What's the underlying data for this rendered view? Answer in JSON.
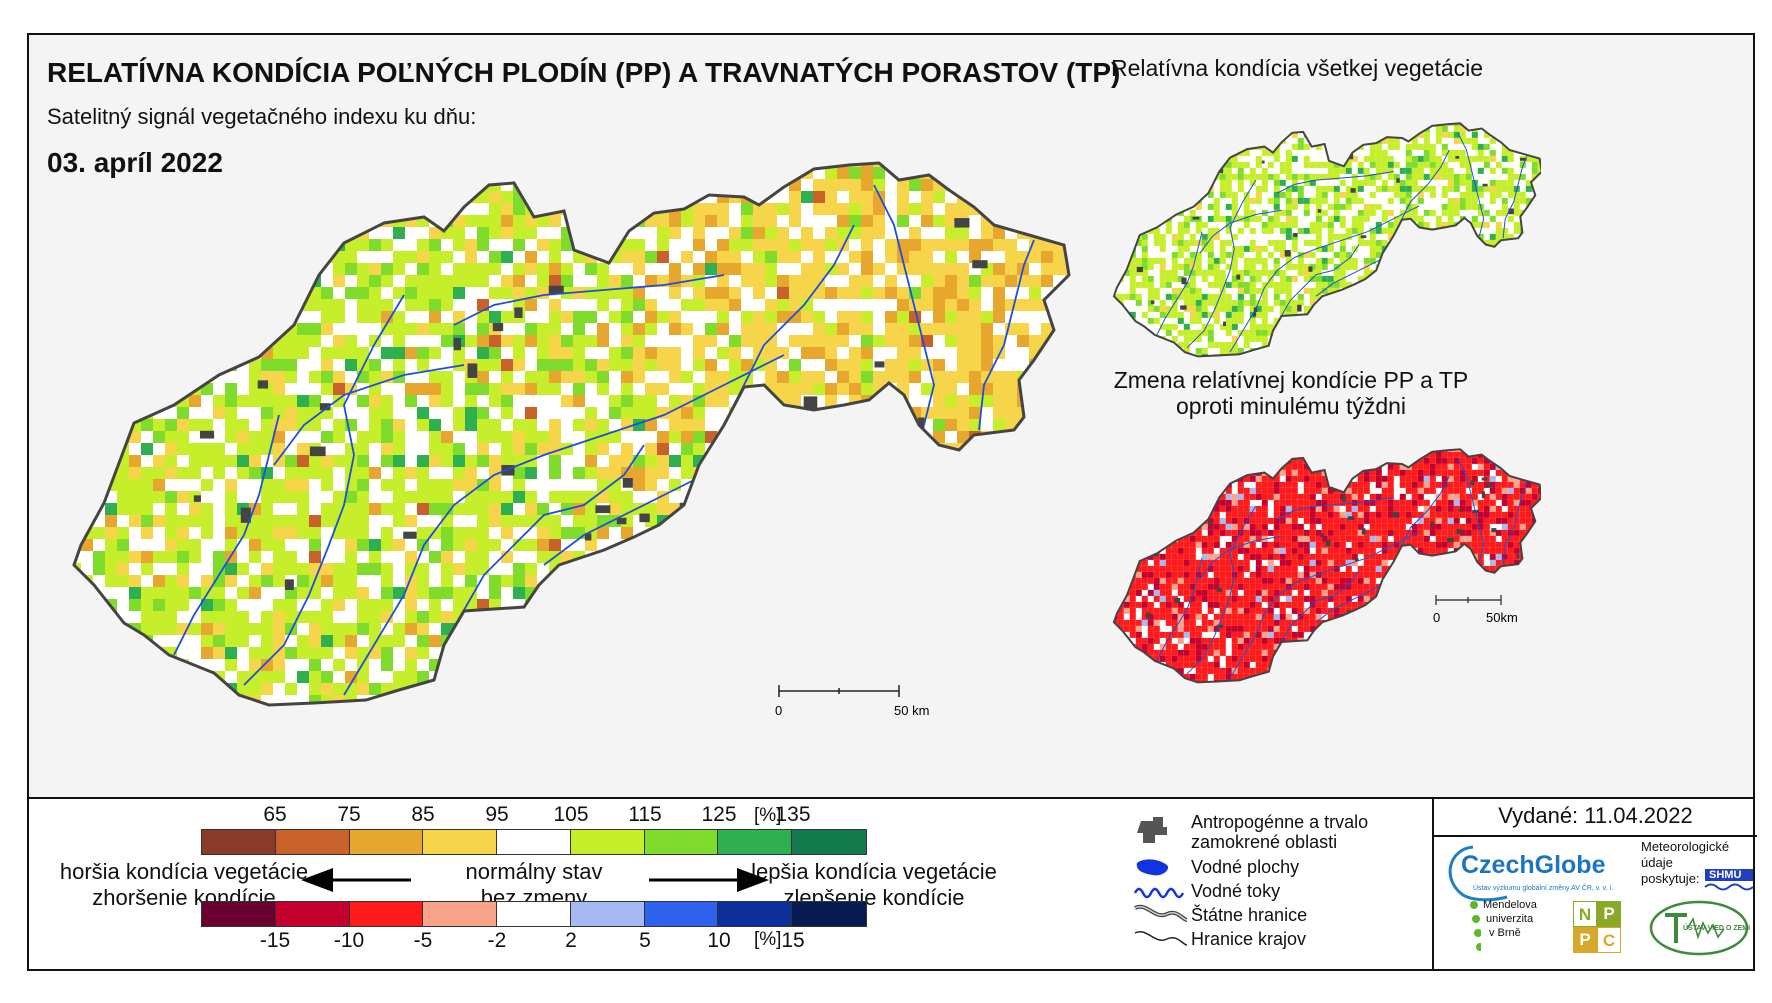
{
  "map": {
    "title": "RELATÍVNA KONDÍCIA POĽNÝCH PLODÍN (PP) A TRAVNATÝCH PORASTOV (TP)",
    "subtitle": "Satelitný signál vegetačného indexu ku dňu:",
    "date": "03. apríl 2022",
    "scale_zero": "0",
    "scale_fifty": "50 km"
  },
  "inset_all": {
    "title": "Relatívna kondícia všetkej vegetácie"
  },
  "inset_change": {
    "title_line1": "Zmena relatívnej kondície PP a TP",
    "title_line2": "oproti minulému týždni",
    "scale_zero": "0",
    "scale_fifty": "50km"
  },
  "legend": {
    "condition_ticks": [
      "65",
      "75",
      "85",
      "95",
      "105",
      "115",
      "125",
      "135"
    ],
    "condition_unit": "[%]",
    "condition_colors": [
      "#8b3a2a",
      "#c8612a",
      "#e7a72f",
      "#f6d54b",
      "#ffffff",
      "#c6ee2a",
      "#7fdc2c",
      "#2fb050",
      "#137a4e"
    ],
    "change_ticks": [
      "-15",
      "-10",
      "-5",
      "-2",
      "2",
      "5",
      "10",
      "15"
    ],
    "change_unit": "[%]",
    "change_colors": [
      "#6b0033",
      "#c4002f",
      "#ff1b1b",
      "#f7a48a",
      "#ffffff",
      "#a6b9f4",
      "#2e62ec",
      "#0c2f9a",
      "#071a52"
    ],
    "worse_line1": "horšia kondícia vegetácie",
    "worse_line2": "zhoršenie kondície",
    "normal_line1": "normálny stav",
    "normal_line2": "bez zmeny",
    "better_line1": "lepšia kondícia vegetácie",
    "better_line2": "zlepšenie kondície"
  },
  "key": {
    "anthropogenic_line1": "Antropogénne a trvalo",
    "anthropogenic_line2": "zamokrené oblasti",
    "water_bodies": "Vodné plochy",
    "watercourses": "Vodné toky",
    "state_border": "Štátne hranice",
    "regional_border": "Hranice krajov"
  },
  "issued": "Vydané: 11.04.2022",
  "logos": {
    "czechglobe": "CzechGlobe",
    "czechglobe_sub": "Ústav výzkumu globální změny AV ČR, v. v. i.",
    "meteo_line1": "Meteorologické",
    "meteo_line2": "údaje",
    "meteo_line3": "poskytuje:",
    "shmu": "SHMÚ",
    "mendel_line1": "Mendelova",
    "mendel_line2": "univerzita",
    "mendel_line3": "v Brně",
    "nppc_letters": [
      "N",
      "P",
      "P",
      "C"
    ],
    "uvz": "ÚSTAV VIED O ZEMI"
  }
}
